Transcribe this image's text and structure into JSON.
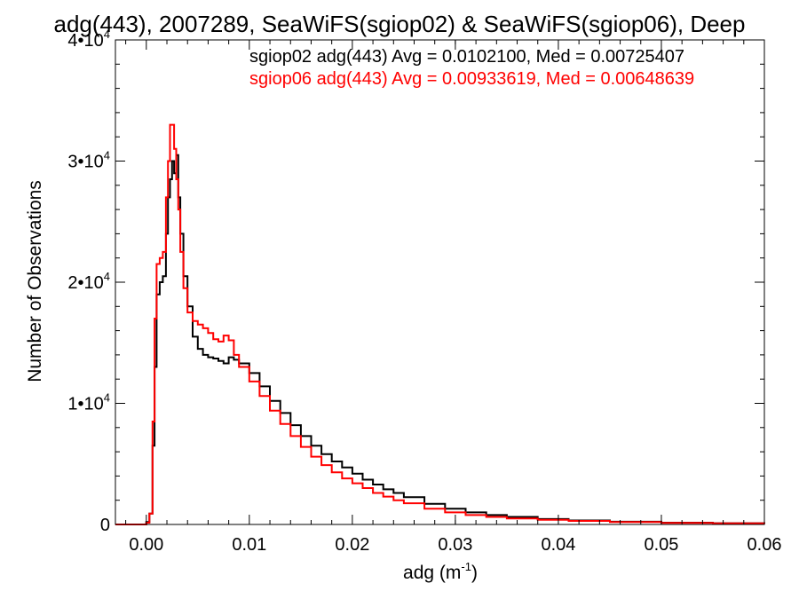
{
  "chart_data": {
    "type": "line",
    "title": "adg(443), 2007289, SeaWiFS(sgiop02) & SeaWiFS(sgiop06), Deep",
    "xlabel_main": "adg (m",
    "xlabel_sup": "-1",
    "xlabel_end": ")",
    "ylabel": "Number of Observations",
    "xlim": [
      -0.003,
      0.06
    ],
    "ylim": [
      0,
      40000
    ],
    "grid": false,
    "legend": "top-right",
    "x_ticks": [
      {
        "value": 0.0,
        "label": "0.00"
      },
      {
        "value": 0.01,
        "label": "0.01"
      },
      {
        "value": 0.02,
        "label": "0.02"
      },
      {
        "value": 0.03,
        "label": "0.03"
      },
      {
        "value": 0.04,
        "label": "0.04"
      },
      {
        "value": 0.05,
        "label": "0.05"
      },
      {
        "value": 0.06,
        "label": "0.06"
      }
    ],
    "y_ticks": [
      {
        "value": 0,
        "base": "0",
        "sup": ""
      },
      {
        "value": 10000,
        "base": "1•10",
        "sup": "4"
      },
      {
        "value": 20000,
        "base": "2•10",
        "sup": "4"
      },
      {
        "value": 30000,
        "base": "3•10",
        "sup": "4"
      },
      {
        "value": 40000,
        "base": "4•10",
        "sup": "4"
      }
    ],
    "series": [
      {
        "name": "sgiop02 adg(443) Avg = 0.0102100, Med = 0.00725407",
        "color": "#000000",
        "points": [
          [
            -0.003,
            0
          ],
          [
            -0.0005,
            0
          ],
          [
            0.0,
            200
          ],
          [
            0.0003,
            900
          ],
          [
            0.0006,
            6500
          ],
          [
            0.0008,
            13000
          ],
          [
            0.001,
            19000
          ],
          [
            0.0013,
            20000
          ],
          [
            0.0016,
            20500
          ],
          [
            0.0019,
            24000
          ],
          [
            0.0021,
            27000
          ],
          [
            0.0023,
            28500
          ],
          [
            0.0025,
            30000
          ],
          [
            0.0027,
            29000
          ],
          [
            0.0029,
            30500
          ],
          [
            0.0031,
            27000
          ],
          [
            0.0033,
            24000
          ],
          [
            0.0036,
            20500
          ],
          [
            0.004,
            18000
          ],
          [
            0.0045,
            15500
          ],
          [
            0.005,
            14500
          ],
          [
            0.0055,
            14000
          ],
          [
            0.006,
            13800
          ],
          [
            0.0065,
            13700
          ],
          [
            0.007,
            13500
          ],
          [
            0.0075,
            13300
          ],
          [
            0.008,
            13800
          ],
          [
            0.0085,
            13600
          ],
          [
            0.009,
            13300
          ],
          [
            0.01,
            12500
          ],
          [
            0.011,
            11400
          ],
          [
            0.012,
            10200
          ],
          [
            0.013,
            9200
          ],
          [
            0.014,
            8200
          ],
          [
            0.015,
            7300
          ],
          [
            0.016,
            6500
          ],
          [
            0.017,
            5800
          ],
          [
            0.018,
            5200
          ],
          [
            0.019,
            4700
          ],
          [
            0.02,
            4200
          ],
          [
            0.021,
            3700
          ],
          [
            0.022,
            3300
          ],
          [
            0.023,
            2900
          ],
          [
            0.024,
            2600
          ],
          [
            0.025,
            2250
          ],
          [
            0.027,
            1700
          ],
          [
            0.029,
            1300
          ],
          [
            0.031,
            1000
          ],
          [
            0.033,
            780
          ],
          [
            0.035,
            620
          ],
          [
            0.038,
            450
          ],
          [
            0.041,
            330
          ],
          [
            0.045,
            230
          ],
          [
            0.05,
            150
          ],
          [
            0.055,
            100
          ],
          [
            0.06,
            60
          ]
        ]
      },
      {
        "name": "sgiop06 adg(443) Avg = 0.00933619, Med = 0.00648639",
        "color": "#ff0000",
        "points": [
          [
            -0.003,
            0
          ],
          [
            -0.0005,
            0
          ],
          [
            0.0,
            150
          ],
          [
            0.0003,
            900
          ],
          [
            0.0006,
            8500
          ],
          [
            0.0008,
            17000
          ],
          [
            0.001,
            21500
          ],
          [
            0.0013,
            22000
          ],
          [
            0.0016,
            22500
          ],
          [
            0.0019,
            27000
          ],
          [
            0.0021,
            30000
          ],
          [
            0.0023,
            33000
          ],
          [
            0.0025,
            33000
          ],
          [
            0.0027,
            31000
          ],
          [
            0.0029,
            28500
          ],
          [
            0.0031,
            26000
          ],
          [
            0.0033,
            22500
          ],
          [
            0.0036,
            19500
          ],
          [
            0.004,
            17500
          ],
          [
            0.0045,
            16800
          ],
          [
            0.005,
            16500
          ],
          [
            0.0055,
            16200
          ],
          [
            0.006,
            15800
          ],
          [
            0.0065,
            15300
          ],
          [
            0.007,
            15100
          ],
          [
            0.0075,
            15600
          ],
          [
            0.008,
            15200
          ],
          [
            0.0085,
            14000
          ],
          [
            0.009,
            13000
          ],
          [
            0.01,
            11800
          ],
          [
            0.011,
            10600
          ],
          [
            0.012,
            9400
          ],
          [
            0.013,
            8300
          ],
          [
            0.014,
            7300
          ],
          [
            0.015,
            6400
          ],
          [
            0.016,
            5600
          ],
          [
            0.017,
            4900
          ],
          [
            0.018,
            4300
          ],
          [
            0.019,
            3800
          ],
          [
            0.02,
            3400
          ],
          [
            0.021,
            3000
          ],
          [
            0.022,
            2600
          ],
          [
            0.023,
            2300
          ],
          [
            0.024,
            2000
          ],
          [
            0.025,
            1750
          ],
          [
            0.027,
            1300
          ],
          [
            0.029,
            1000
          ],
          [
            0.031,
            780
          ],
          [
            0.033,
            620
          ],
          [
            0.035,
            500
          ],
          [
            0.038,
            380
          ],
          [
            0.041,
            290
          ],
          [
            0.045,
            200
          ],
          [
            0.05,
            130
          ],
          [
            0.055,
            90
          ],
          [
            0.06,
            55
          ]
        ]
      }
    ]
  }
}
